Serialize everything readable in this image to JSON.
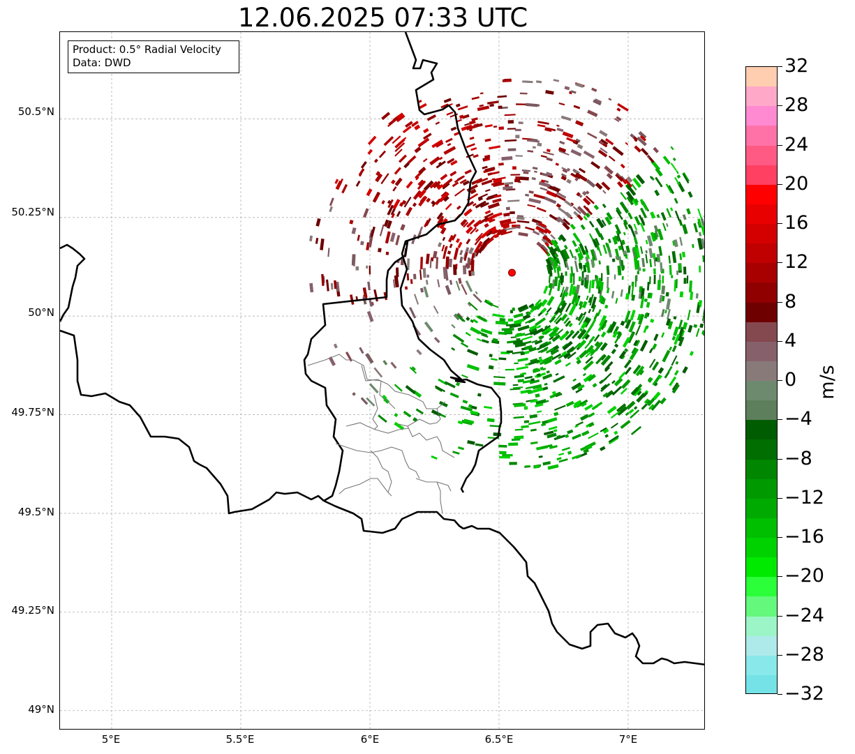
{
  "title": "12.06.2025 07:33 UTC",
  "info": {
    "product": "Product: 0.5° Radial Velocity",
    "source": "Data: DWD"
  },
  "map": {
    "lon_range": [
      4.8,
      7.3
    ],
    "lat_range": [
      48.95,
      50.72
    ],
    "lat_ticks": [
      "50.5°N",
      "50.25°N",
      "50°N",
      "49.75°N",
      "49.5°N",
      "49.25°N",
      "49°N"
    ],
    "lon_ticks": [
      "5°E",
      "5.5°E",
      "6°E",
      "6.5°E",
      "7°E"
    ],
    "grid": true,
    "radar_site": {
      "lon": 6.55,
      "lat": 50.11,
      "color": "#ff0000"
    }
  },
  "colorbar": {
    "label": "m/s",
    "ticks": [
      "32",
      "28",
      "24",
      "20",
      "16",
      "12",
      "8",
      "4",
      "0",
      "−4",
      "−8",
      "−12",
      "−16",
      "−20",
      "−24",
      "−28",
      "−32"
    ],
    "range": [
      -32,
      32
    ],
    "colors_top_to_bottom": [
      "#ffcdb0",
      "#ffa8c8",
      "#ff8ad2",
      "#ff72a8",
      "#ff5a84",
      "#ff4062",
      "#ff0000",
      "#e80000",
      "#d40000",
      "#c00000",
      "#a80000",
      "#900000",
      "#6e0000",
      "#84484f",
      "#86616b",
      "#897a7a",
      "#6d8a6f",
      "#5d7f5b",
      "#005c00",
      "#006e00",
      "#008600",
      "#009a00",
      "#00aa00",
      "#00be00",
      "#00d200",
      "#00ea00",
      "#2aff3a",
      "#64f87c",
      "#9cf5c6",
      "#aeeaea",
      "#88e8ea",
      "#74e2e6"
    ]
  }
}
